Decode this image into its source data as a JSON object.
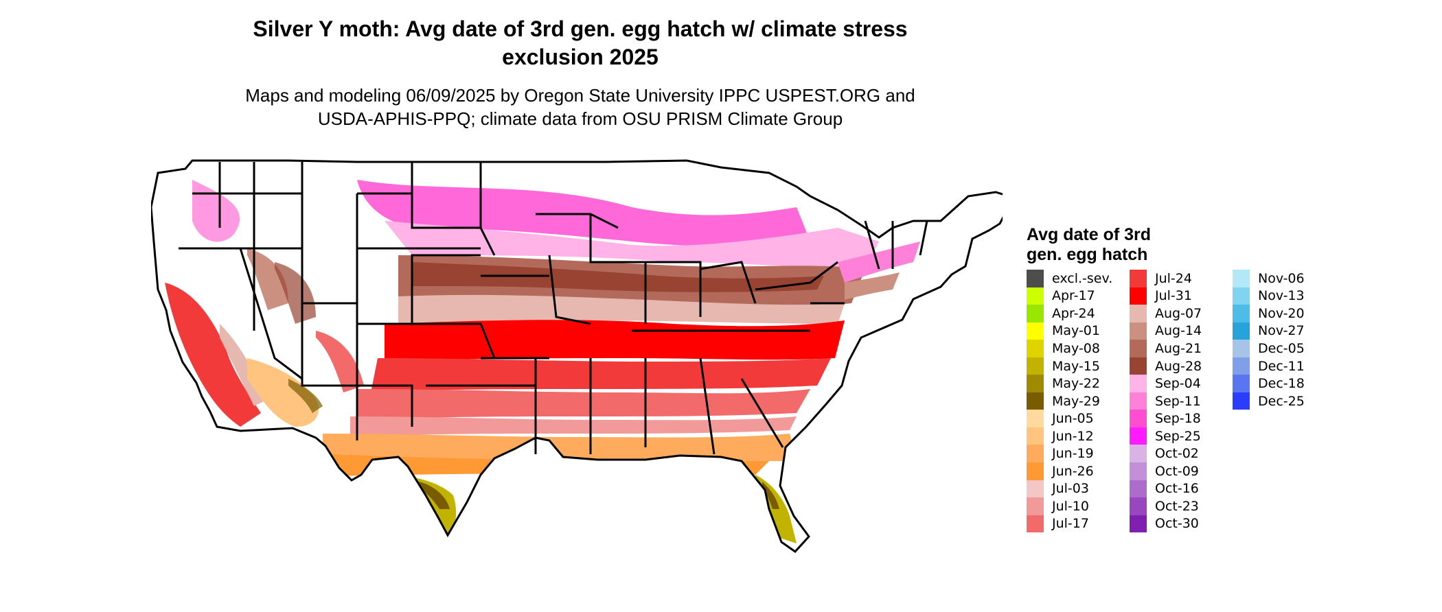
{
  "map": {
    "title_line1": "Silver Y moth: Avg date of 3rd gen. egg hatch w/ climate stress",
    "title_line2": "exclusion 2025",
    "subtitle_line1": "Maps and modeling 06/09/2025 by Oregon State University IPPC USPEST.ORG and",
    "subtitle_line2": "USDA-APHIS-PPQ; climate data from OSU PRISM Climate Group"
  },
  "legend": {
    "title_line1": "Avg date of 3rd",
    "title_line2": "gen. egg hatch",
    "items": [
      {
        "label": "excl.-sev.",
        "color": "#4d4d4d"
      },
      {
        "label": "Apr-17",
        "color": "#ccff00"
      },
      {
        "label": "Apr-24",
        "color": "#99e600"
      },
      {
        "label": "May-01",
        "color": "#ffff00"
      },
      {
        "label": "May-08",
        "color": "#e0d400"
      },
      {
        "label": "May-15",
        "color": "#c2b300"
      },
      {
        "label": "May-22",
        "color": "#a08a00"
      },
      {
        "label": "May-29",
        "color": "#7a5c00"
      },
      {
        "label": "Jun-05",
        "color": "#ffd99e"
      },
      {
        "label": "Jun-12",
        "color": "#ffc47f"
      },
      {
        "label": "Jun-19",
        "color": "#ffab5e"
      },
      {
        "label": "Jun-26",
        "color": "#ff9933"
      },
      {
        "label": "Jul-03",
        "color": "#f5c6c6"
      },
      {
        "label": "Jul-10",
        "color": "#f29a9a"
      },
      {
        "label": "Jul-17",
        "color": "#f26a6a"
      },
      {
        "label": "Jul-24",
        "color": "#f23a3a"
      },
      {
        "label": "Jul-31",
        "color": "#ff0000"
      },
      {
        "label": "Aug-07",
        "color": "#e6b8b0"
      },
      {
        "label": "Aug-14",
        "color": "#cc9080"
      },
      {
        "label": "Aug-21",
        "color": "#b36a5a"
      },
      {
        "label": "Aug-28",
        "color": "#994433"
      },
      {
        "label": "Sep-04",
        "color": "#ffb3e6"
      },
      {
        "label": "Sep-11",
        "color": "#ff80d9"
      },
      {
        "label": "Sep-18",
        "color": "#ff4dd2"
      },
      {
        "label": "Sep-25",
        "color": "#ff1aff"
      },
      {
        "label": "Oct-02",
        "color": "#d9b3e6"
      },
      {
        "label": "Oct-09",
        "color": "#c48fd9"
      },
      {
        "label": "Oct-16",
        "color": "#ad6bcc"
      },
      {
        "label": "Oct-23",
        "color": "#9947bf"
      },
      {
        "label": "Oct-30",
        "color": "#8020b0"
      },
      {
        "label": "Nov-06",
        "color": "#b3e9f7"
      },
      {
        "label": "Nov-13",
        "color": "#80d4f2"
      },
      {
        "label": "Nov-20",
        "color": "#4dbde8"
      },
      {
        "label": "Nov-27",
        "color": "#26a3d9"
      },
      {
        "label": "Dec-05",
        "color": "#a6c3e8"
      },
      {
        "label": "Dec-11",
        "color": "#7f9fe8"
      },
      {
        "label": "Dec-18",
        "color": "#5a75f0"
      },
      {
        "label": "Dec-25",
        "color": "#2a3cff"
      }
    ]
  }
}
